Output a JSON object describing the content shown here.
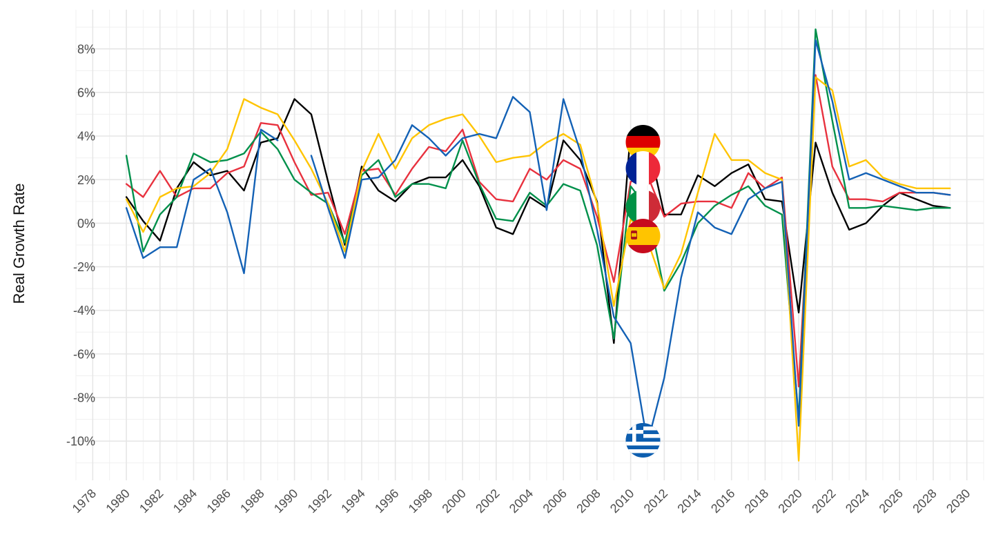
{
  "chart_data": {
    "type": "line",
    "ylabel": "Real Growth Rate",
    "xlabel": "",
    "xlim": [
      1977,
      2031
    ],
    "ylim": [
      -11.8,
      9.8
    ],
    "x_ticks": [
      1978,
      1980,
      1982,
      1984,
      1986,
      1988,
      1990,
      1992,
      1994,
      1996,
      1998,
      2000,
      2002,
      2004,
      2006,
      2008,
      2010,
      2012,
      2014,
      2016,
      2018,
      2020,
      2022,
      2024,
      2026,
      2028,
      2030
    ],
    "y_ticks": [
      -10,
      -8,
      -6,
      -4,
      -2,
      0,
      2,
      4,
      6,
      8
    ],
    "y_tick_labels": [
      "-10%",
      "-8%",
      "-6%",
      "-4%",
      "-2%",
      "0%",
      "2%",
      "4%",
      "6%",
      "8%"
    ],
    "grid": true,
    "legend": "flag icons placed at year 2011 on each series",
    "flag_icons": [
      "germany-flag",
      "france-flag",
      "italy-flag",
      "spain-flag",
      "greece-flag"
    ],
    "series": [
      {
        "id": "germany",
        "color": "#000000",
        "x": [
          1980,
          1981,
          1982,
          1983,
          1984,
          1985,
          1986,
          1987,
          1988,
          1989,
          1990,
          1991,
          1992,
          1993,
          1994,
          1995,
          1996,
          1997,
          1998,
          1999,
          2000,
          2001,
          2002,
          2003,
          2004,
          2005,
          2006,
          2007,
          2008,
          2009,
          2010,
          2011,
          2012,
          2013,
          2014,
          2015,
          2016,
          2017,
          2018,
          2019,
          2020,
          2021,
          2022,
          2023,
          2024,
          2025,
          2026,
          2027,
          2028,
          2029
        ],
        "values": [
          1.2,
          0.1,
          -0.8,
          1.6,
          2.8,
          2.2,
          2.4,
          1.5,
          3.7,
          3.9,
          5.7,
          5.0,
          1.9,
          -1.0,
          2.6,
          1.5,
          1.0,
          1.8,
          2.1,
          2.1,
          2.9,
          1.7,
          -0.2,
          -0.5,
          1.2,
          0.7,
          3.8,
          2.9,
          1.0,
          -5.5,
          4.2,
          3.9,
          0.4,
          0.4,
          2.2,
          1.7,
          2.3,
          2.7,
          1.1,
          1.0,
          -4.1,
          3.7,
          1.4,
          -0.3,
          0.0,
          0.8,
          1.4,
          1.1,
          0.8,
          0.7
        ]
      },
      {
        "id": "france",
        "color": "#e8313e",
        "x": [
          1980,
          1981,
          1982,
          1983,
          1984,
          1985,
          1986,
          1987,
          1988,
          1989,
          1990,
          1991,
          1992,
          1993,
          1994,
          1995,
          1996,
          1997,
          1998,
          1999,
          2000,
          2001,
          2002,
          2003,
          2004,
          2005,
          2006,
          2007,
          2008,
          2009,
          2010,
          2011,
          2012,
          2013,
          2014,
          2015,
          2016,
          2017,
          2018,
          2019,
          2020,
          2021,
          2022,
          2023,
          2024,
          2025,
          2026,
          2027,
          2028,
          2029
        ],
        "values": [
          1.8,
          1.2,
          2.4,
          1.2,
          1.6,
          1.6,
          2.3,
          2.6,
          4.6,
          4.5,
          2.8,
          1.3,
          1.4,
          -0.5,
          2.4,
          2.5,
          1.3,
          2.5,
          3.5,
          3.3,
          4.3,
          1.9,
          1.1,
          1.0,
          2.5,
          2.0,
          2.9,
          2.5,
          0.3,
          -2.7,
          1.9,
          2.2,
          0.3,
          0.9,
          1.0,
          1.0,
          0.7,
          2.3,
          1.6,
          2.1,
          -7.5,
          6.8,
          2.6,
          1.1,
          1.1,
          1.0,
          1.4,
          1.4,
          1.4,
          1.3
        ]
      },
      {
        "id": "italy",
        "color": "#00904b",
        "x": [
          1980,
          1981,
          1982,
          1983,
          1984,
          1985,
          1986,
          1987,
          1988,
          1989,
          1990,
          1991,
          1992,
          1993,
          1994,
          1995,
          1996,
          1997,
          1998,
          1999,
          2000,
          2001,
          2002,
          2003,
          2004,
          2005,
          2006,
          2007,
          2008,
          2009,
          2010,
          2011,
          2012,
          2013,
          2014,
          2015,
          2016,
          2017,
          2018,
          2019,
          2020,
          2021,
          2022,
          2023,
          2024,
          2025,
          2026,
          2027,
          2028,
          2029
        ],
        "values": [
          3.1,
          -1.3,
          0.4,
          1.2,
          3.2,
          2.8,
          2.9,
          3.2,
          4.2,
          3.4,
          2.0,
          1.4,
          0.9,
          -0.9,
          2.2,
          2.9,
          1.2,
          1.8,
          1.8,
          1.6,
          3.8,
          1.8,
          0.2,
          0.1,
          1.4,
          0.8,
          1.8,
          1.5,
          -1.0,
          -5.3,
          1.7,
          0.7,
          -3.1,
          -1.8,
          0.0,
          0.8,
          1.3,
          1.7,
          0.8,
          0.4,
          -9.0,
          8.9,
          4.7,
          0.7,
          0.7,
          0.8,
          0.7,
          0.6,
          0.7,
          0.7
        ]
      },
      {
        "id": "spain",
        "color": "#ffc400",
        "x": [
          1980,
          1981,
          1982,
          1983,
          1984,
          1985,
          1986,
          1987,
          1988,
          1989,
          1990,
          1991,
          1992,
          1993,
          1994,
          1995,
          1996,
          1997,
          1998,
          1999,
          2000,
          2001,
          2002,
          2003,
          2004,
          2005,
          2006,
          2007,
          2008,
          2009,
          2010,
          2011,
          2012,
          2013,
          2014,
          2015,
          2016,
          2017,
          2018,
          2019,
          2020,
          2021,
          2022,
          2023,
          2024,
          2025,
          2026,
          2027,
          2028,
          2029
        ],
        "values": [
          1.1,
          -0.4,
          1.2,
          1.6,
          1.7,
          2.3,
          3.4,
          5.7,
          5.3,
          5.0,
          3.8,
          2.5,
          0.9,
          -1.3,
          2.4,
          4.1,
          2.5,
          3.9,
          4.5,
          4.8,
          5.0,
          4.0,
          2.8,
          3.0,
          3.1,
          3.7,
          4.1,
          3.6,
          0.9,
          -3.8,
          0.2,
          -0.8,
          -3.0,
          -1.4,
          1.4,
          4.1,
          2.9,
          2.9,
          2.3,
          2.0,
          -10.9,
          6.7,
          6.1,
          2.6,
          2.9,
          2.1,
          1.8,
          1.6,
          1.6,
          1.6
        ]
      },
      {
        "id": "greece",
        "color": "#1361b5",
        "x": [
          1980,
          1981,
          1982,
          1983,
          1984,
          1985,
          1986,
          1987,
          1988,
          1989,
          1990,
          1991,
          1992,
          1993,
          1994,
          1995,
          1996,
          1997,
          1998,
          1999,
          2000,
          2001,
          2002,
          2003,
          2004,
          2005,
          2006,
          2007,
          2008,
          2009,
          2010,
          2011,
          2012,
          2013,
          2014,
          2015,
          2016,
          2017,
          2018,
          2019,
          2020,
          2021,
          2022,
          2023,
          2024,
          2025,
          2026,
          2027,
          2028,
          2029
        ],
        "values": [
          0.7,
          -1.6,
          -1.1,
          -1.1,
          2.0,
          2.5,
          0.5,
          -2.3,
          4.3,
          3.8,
          null,
          3.1,
          0.7,
          -1.6,
          2.0,
          2.1,
          2.9,
          4.5,
          3.9,
          3.1,
          3.9,
          4.1,
          3.9,
          5.8,
          5.1,
          0.6,
          5.7,
          3.3,
          -0.3,
          -4.3,
          -5.5,
          -10.1,
          -7.1,
          -2.5,
          0.5,
          -0.2,
          -0.5,
          1.1,
          1.6,
          1.9,
          -9.3,
          8.4,
          5.6,
          2.0,
          2.3,
          2.0,
          1.7,
          1.4,
          1.4,
          1.3
        ]
      }
    ]
  }
}
